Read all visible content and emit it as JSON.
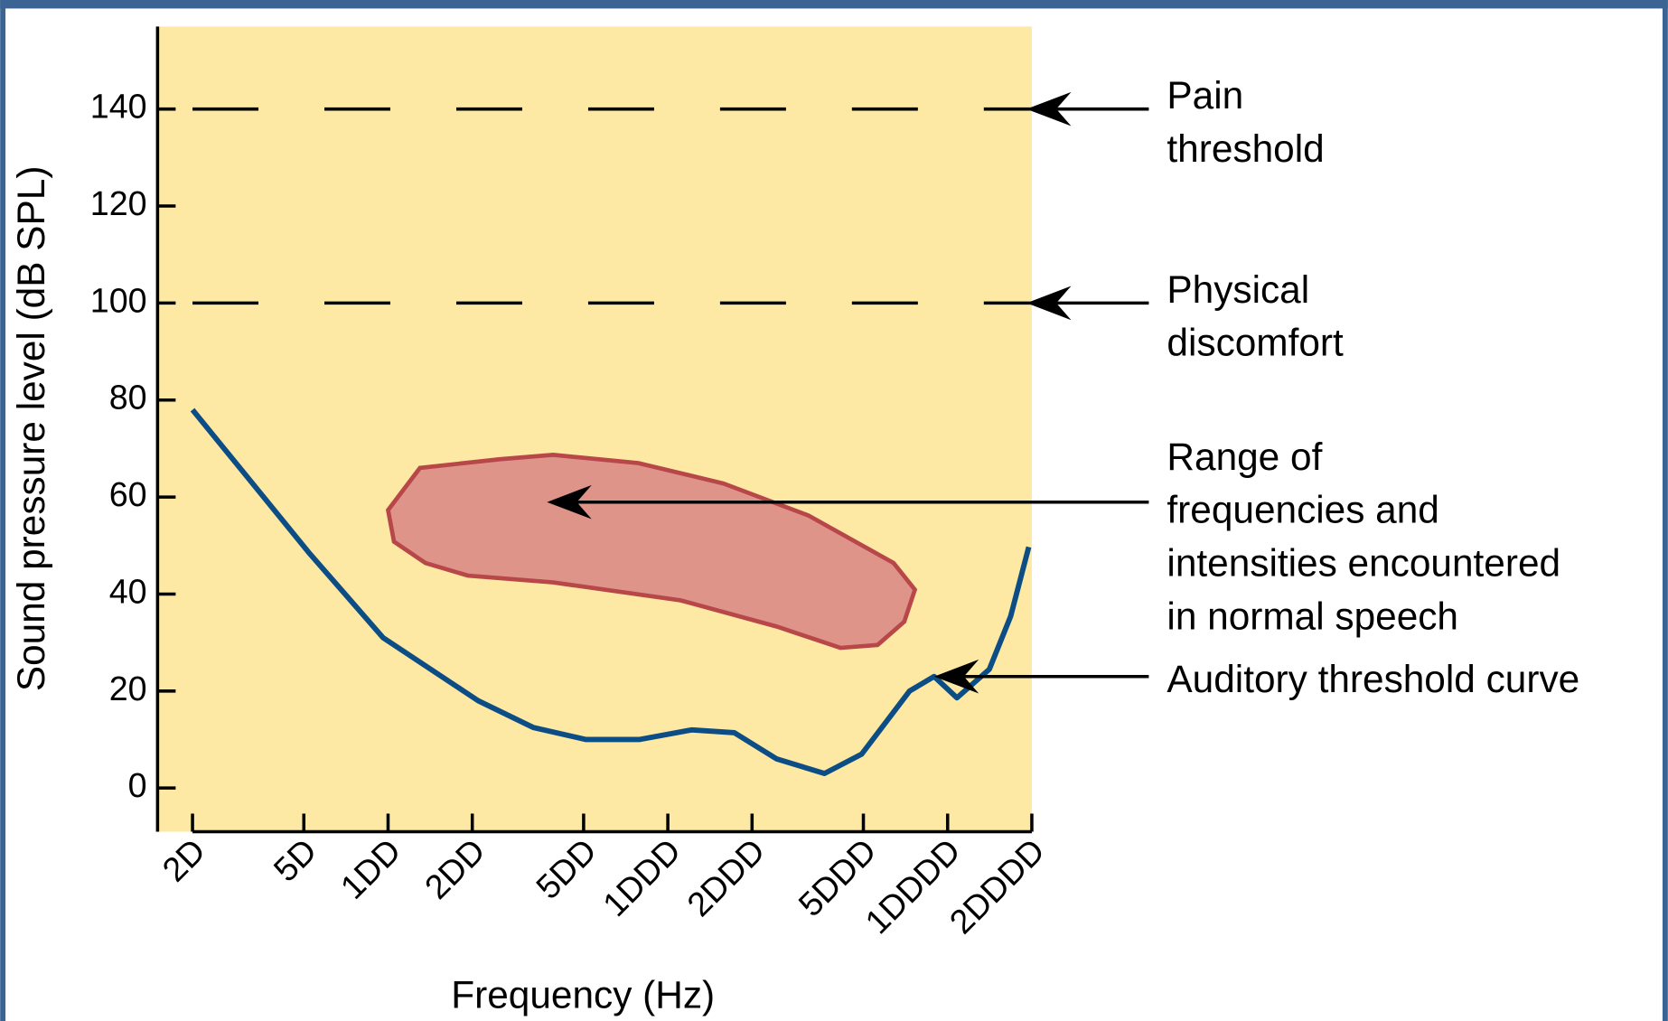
{
  "chart_data": {
    "type": "line",
    "xlabel": "Frequency (Hz)",
    "ylabel": "Sound pressure level (dB SPL)",
    "xscale": "log",
    "xlim": [
      15,
      20000
    ],
    "ylim": [
      -9,
      157
    ],
    "xticks": [
      {
        "value": 20,
        "label": "2D"
      },
      {
        "value": 50,
        "label": "5D"
      },
      {
        "value": 100,
        "label": "1DD"
      },
      {
        "value": 200,
        "label": "2DD"
      },
      {
        "value": 500,
        "label": "5DD"
      },
      {
        "value": 1000,
        "label": "1DDD"
      },
      {
        "value": 2000,
        "label": "2DDD"
      },
      {
        "value": 5000,
        "label": "5DDD"
      },
      {
        "value": 10000,
        "label": "1DDDD"
      },
      {
        "value": 20000,
        "label": "2DDDD"
      }
    ],
    "yticks": [
      0,
      20,
      40,
      60,
      80,
      100,
      120,
      140
    ],
    "background": "#fde9a3",
    "reference_lines": [
      {
        "y": 140,
        "label": [
          "Pain",
          "threshold"
        ]
      },
      {
        "y": 100,
        "label": [
          "Physical",
          "discomfort"
        ]
      }
    ],
    "series": [
      {
        "label": [
          "Auditory threshold curve"
        ],
        "color": "#0d4d86",
        "x": [
          20,
          52,
          96,
          210,
          330,
          510,
          790,
          1220,
          1730,
          2450,
          3630,
          4930,
          7310,
          8950,
          10800,
          14100,
          16800,
          19500
        ],
        "values": [
          78,
          48.6,
          31,
          18,
          12.5,
          10,
          10,
          12,
          11.4,
          6,
          3,
          7,
          20,
          23,
          18.6,
          24.5,
          35.4,
          49.7
        ]
      }
    ],
    "regions": [
      {
        "label": [
          "Range of",
          "frequencies and",
          "intensities encountered",
          "in normal speech"
        ],
        "fill": "#df948a",
        "stroke": "#b8474a",
        "x": [
          100,
          130,
          251,
          389,
          785,
          1580,
          3180,
          6410,
          7640,
          7000,
          5620,
          4140,
          2450,
          1110,
          389,
          193,
          136,
          105
        ],
        "y": [
          57.3,
          66,
          67.8,
          68.7,
          67,
          62.8,
          56.2,
          46.4,
          40.9,
          34.3,
          29.5,
          28.9,
          33.3,
          38.7,
          42.4,
          43.8,
          46.4,
          50.8
        ]
      }
    ]
  }
}
